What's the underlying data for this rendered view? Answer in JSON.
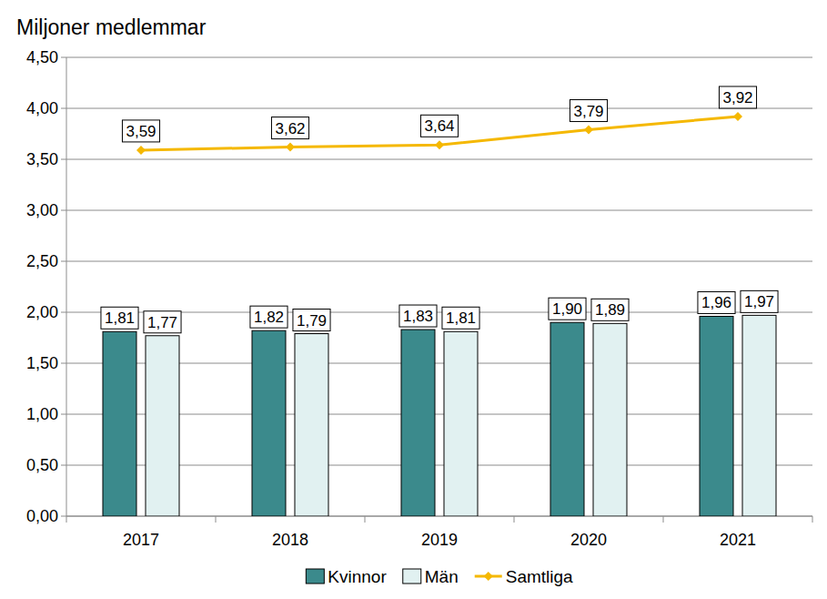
{
  "chart_data": {
    "type": "bar",
    "title": "Miljoner medlemmar",
    "categories": [
      "2017",
      "2018",
      "2019",
      "2020",
      "2021"
    ],
    "series": [
      {
        "name": "Kvinnor",
        "type": "bar",
        "color": "#3b8a8c",
        "values": [
          1.81,
          1.82,
          1.83,
          1.9,
          1.96
        ],
        "value_labels": [
          "1,81",
          "1,82",
          "1,83",
          "1,90",
          "1,96"
        ]
      },
      {
        "name": "Män",
        "type": "bar",
        "color": "#e1f1f1",
        "values": [
          1.77,
          1.79,
          1.81,
          1.89,
          1.97
        ],
        "value_labels": [
          "1,77",
          "1,79",
          "1,81",
          "1,89",
          "1,97"
        ]
      },
      {
        "name": "Samtliga",
        "type": "line",
        "color": "#f5b800",
        "marker": "diamond",
        "values": [
          3.59,
          3.62,
          3.64,
          3.79,
          3.92
        ],
        "value_labels": [
          "3,59",
          "3,62",
          "3,64",
          "3,79",
          "3,92"
        ]
      }
    ],
    "ylim": [
      0,
      4.5
    ],
    "yticks": [
      {
        "value": 0,
        "label": "0,00"
      },
      {
        "value": 0.5,
        "label": "0,50"
      },
      {
        "value": 1,
        "label": "1,00"
      },
      {
        "value": 1.5,
        "label": "1,50"
      },
      {
        "value": 2,
        "label": "2,00"
      },
      {
        "value": 2.5,
        "label": "2,50"
      },
      {
        "value": 3,
        "label": "3,00"
      },
      {
        "value": 3.5,
        "label": "3,50"
      },
      {
        "value": 4,
        "label": "4,00"
      },
      {
        "value": 4.5,
        "label": "4,50"
      }
    ],
    "grid": true,
    "legend": "bottom",
    "data_labels": true
  }
}
